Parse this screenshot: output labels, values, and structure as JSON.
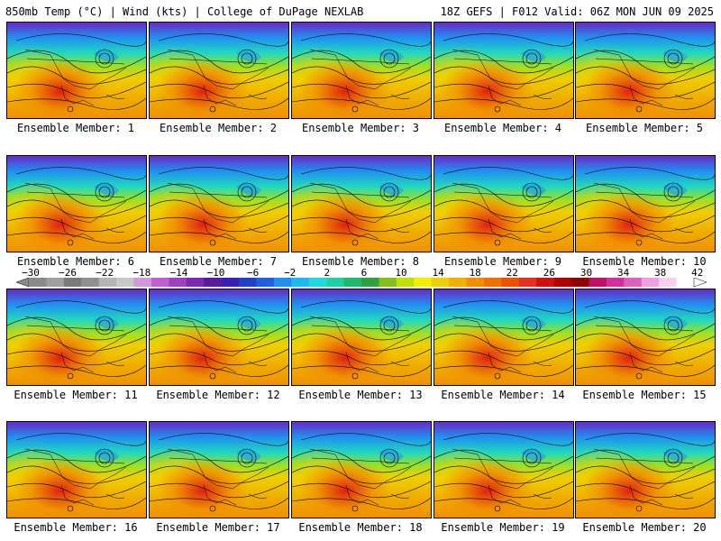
{
  "header": {
    "left": "850mb Temp (°C) | Wind (kts) | College of DuPage NEXLAB",
    "right": "18Z GEFS | F012 Valid: 06Z MON JUN 09 2025"
  },
  "panels": [
    {
      "label": "Ensemble Member: 1"
    },
    {
      "label": "Ensemble Member: 2"
    },
    {
      "label": "Ensemble Member: 3"
    },
    {
      "label": "Ensemble Member: 4"
    },
    {
      "label": "Ensemble Member: 5"
    },
    {
      "label": "Ensemble Member: 6"
    },
    {
      "label": "Ensemble Member: 7"
    },
    {
      "label": "Ensemble Member: 8"
    },
    {
      "label": "Ensemble Member: 9"
    },
    {
      "label": "Ensemble Member: 10"
    },
    {
      "label": "Ensemble Member: 11"
    },
    {
      "label": "Ensemble Member: 12"
    },
    {
      "label": "Ensemble Member: 13"
    },
    {
      "label": "Ensemble Member: 14"
    },
    {
      "label": "Ensemble Member: 15"
    },
    {
      "label": "Ensemble Member: 16"
    },
    {
      "label": "Ensemble Member: 17"
    },
    {
      "label": "Ensemble Member: 18"
    },
    {
      "label": "Ensemble Member: 19"
    },
    {
      "label": "Ensemble Member: 20"
    }
  ],
  "colorbar": {
    "ticks": [
      "−30",
      "−26",
      "−22",
      "−18",
      "−14",
      "−10",
      "−6",
      "−2",
      "2",
      "6",
      "10",
      "14",
      "18",
      "22",
      "26",
      "30",
      "34",
      "38",
      "42"
    ],
    "colors": [
      "#8a8a8a",
      "#a0a0a0",
      "#7a7a7a",
      "#909090",
      "#b4b4b4",
      "#c8c8c8",
      "#d09ad8",
      "#c060d0",
      "#a040c0",
      "#7a2ab0",
      "#5a1aa0",
      "#3a20b0",
      "#2040c8",
      "#2060e0",
      "#2090f0",
      "#20b8f0",
      "#20d8e0",
      "#20d0a8",
      "#20b870",
      "#30a040",
      "#80c020",
      "#c0e000",
      "#f0f000",
      "#f0d000",
      "#f0b000",
      "#f09000",
      "#f07000",
      "#f05000",
      "#e83020",
      "#d01010",
      "#b00000",
      "#900000",
      "#c01060",
      "#d030a0",
      "#e060c0",
      "#f0a0e0",
      "#f8d0f0",
      "#ffffff"
    ]
  },
  "map_colors": {
    "north": "#6a2ac8",
    "cold": "#2090f0",
    "cool": "#20d8c0",
    "mild": "#a0e020",
    "warm": "#f0d000",
    "hot": "#f09000",
    "core": "#e02010",
    "ocean": "#f0b000"
  }
}
